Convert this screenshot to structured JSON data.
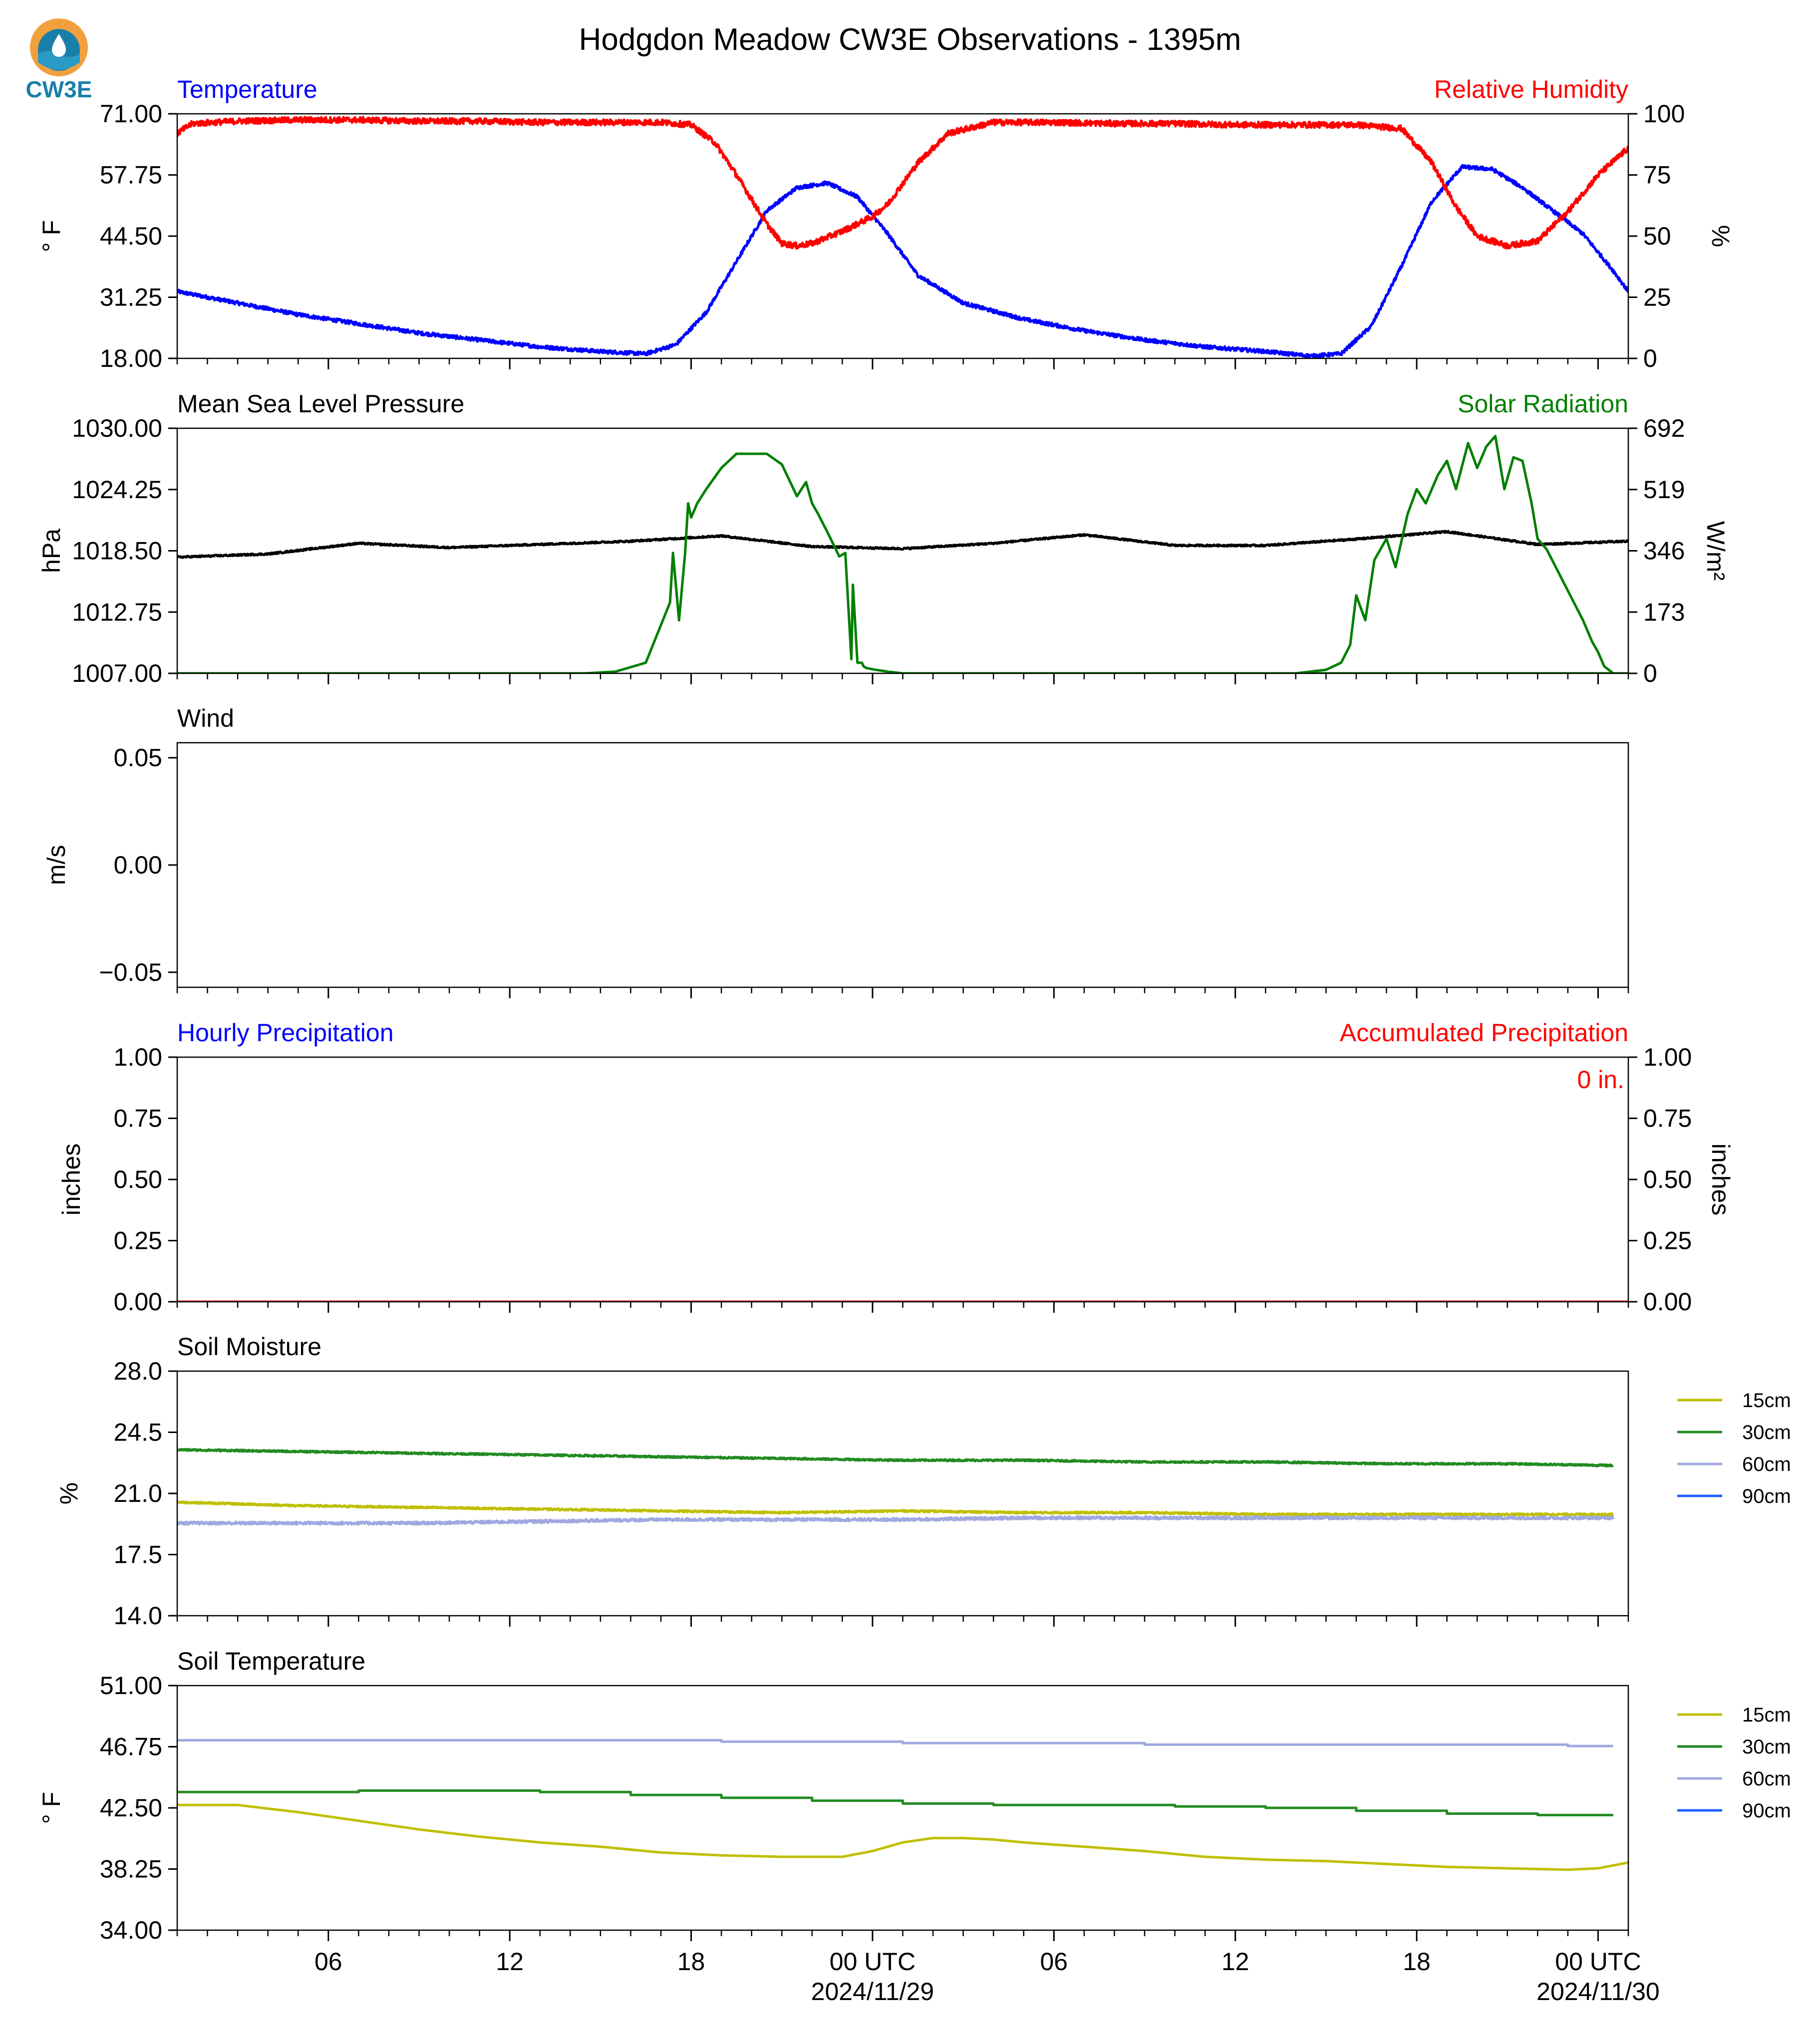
{
  "title": "Hodgdon Meadow CW3E Observations - 1395m",
  "logo": {
    "text": "CW3E",
    "icon": "cw3e-logo-icon",
    "colors": {
      "sun": "#f2a03d",
      "ring": "#1a7fa8",
      "wave": "#2a9bc4"
    }
  },
  "colors": {
    "temperature": "#0000ff",
    "rh": "#ff0000",
    "pressure": "#000000",
    "solar": "#007f00",
    "soil_15": "#bfbf00",
    "soil_30": "#228b22",
    "soil_60": "#9fa8e0",
    "soil_90": "#1f5fff"
  },
  "x_axis": {
    "unit": "hours",
    "range": [
      0,
      48
    ],
    "ticks": [
      {
        "v": 5,
        "label": "06"
      },
      {
        "v": 11,
        "label": "12"
      },
      {
        "v": 17,
        "label": "18"
      },
      {
        "v": 23,
        "label": "00 UTC",
        "sub": "2024/11/29"
      },
      {
        "v": 29,
        "label": "06"
      },
      {
        "v": 35,
        "label": "12"
      },
      {
        "v": 41,
        "label": "18"
      },
      {
        "v": 47,
        "label": "00 UTC",
        "sub": "2024/11/30"
      }
    ],
    "minor": [
      0,
      1,
      2,
      3,
      4,
      6,
      7,
      8,
      9,
      10,
      12,
      13,
      14,
      15,
      16,
      18,
      19,
      20,
      21,
      22,
      24,
      25,
      26,
      27,
      28,
      30,
      31,
      32,
      33,
      34,
      36,
      37,
      38,
      39,
      40,
      42,
      43,
      44,
      45,
      46,
      48
    ]
  },
  "chart_data": [
    {
      "id": "temp_rh",
      "type": "line",
      "title_left": "Temperature",
      "title_right": "Relative Humidity",
      "ylabel_left": "° F",
      "ylabel_right": "%",
      "ylim_left": [
        18.0,
        71.0
      ],
      "yticks_left": [
        "18.00",
        "31.25",
        "44.50",
        "57.75",
        "71.00"
      ],
      "ylim_right": [
        0,
        100
      ],
      "yticks_right": [
        "0",
        "25",
        "50",
        "75",
        "100"
      ],
      "series": [
        {
          "axis": "left",
          "color": "temperature",
          "noise": 0.4,
          "x": [
            0,
            2,
            4,
            6,
            8,
            10,
            12,
            14,
            15.5,
            16.5,
            17.5,
            18.5,
            19.5,
            20.5,
            21.5,
            22.5,
            23.5,
            24.5,
            26,
            28,
            30,
            32,
            34,
            36,
            37.5,
            38.5,
            39.5,
            40.5,
            41.5,
            42.5,
            43.5,
            44.5,
            45.5,
            46.5,
            47.5,
            48
          ],
          "y": [
            32.5,
            30.0,
            27.5,
            25.5,
            23.5,
            22.0,
            20.5,
            19.5,
            19.0,
            21.0,
            28.0,
            39.0,
            50.0,
            55.0,
            56.0,
            53.0,
            45.0,
            36.0,
            30.0,
            26.5,
            24.0,
            22.0,
            20.5,
            19.5,
            18.5,
            19.0,
            25.0,
            38.0,
            52.0,
            59.5,
            59.0,
            55.0,
            50.0,
            45.0,
            37.0,
            32.5
          ]
        },
        {
          "axis": "right",
          "color": "rh",
          "noise": 1.2,
          "x": [
            0,
            0.5,
            2,
            4,
            6,
            8,
            10,
            12,
            14,
            16,
            17,
            17.8,
            18.5,
            19.5,
            20,
            20.5,
            21,
            22,
            23,
            23.5,
            24.5,
            25.5,
            27,
            29,
            31,
            33,
            35,
            37,
            39,
            40.5,
            41.5,
            42.3,
            43,
            44,
            45,
            46,
            47,
            48
          ],
          "y": [
            92,
            96,
            97,
            97.5,
            97.5,
            97,
            97,
            96.5,
            96.5,
            96.5,
            95.5,
            88,
            75,
            55,
            47,
            46,
            47,
            52,
            58,
            63,
            80,
            92,
            96.5,
            96.5,
            96,
            96,
            95.5,
            95.5,
            95.5,
            94,
            80,
            62,
            50,
            46,
            48,
            60,
            75,
            86
          ]
        }
      ]
    },
    {
      "id": "pressure_solar",
      "type": "line",
      "title_left": "Mean Sea Level Pressure",
      "title_right": "Solar Radiation",
      "ylabel_left": "hPa",
      "ylabel_right": "W/m²",
      "ylim_left": [
        1007.0,
        1030.0
      ],
      "yticks_left": [
        "1007.00",
        "1012.75",
        "1018.50",
        "1024.25",
        "1030.00"
      ],
      "ylim_right": [
        0,
        692
      ],
      "yticks_right": [
        "0",
        "173",
        "346",
        "519",
        "692"
      ],
      "series": [
        {
          "axis": "left",
          "color": "pressure",
          "noise": 0.08,
          "x": [
            0,
            3,
            6,
            9,
            12,
            15,
            18,
            21,
            24,
            27,
            30,
            33,
            36,
            39,
            42,
            45,
            48
          ],
          "y": [
            1017.9,
            1018.2,
            1019.2,
            1018.8,
            1019.1,
            1019.4,
            1019.9,
            1018.9,
            1018.7,
            1019.2,
            1020.0,
            1019.0,
            1019.0,
            1019.6,
            1020.3,
            1019.1,
            1019.4
          ]
        },
        {
          "axis": "right",
          "color": "solar",
          "noise": 0,
          "x": [
            0,
            13.5,
            14.5,
            15.5,
            16.3,
            16.4,
            16.6,
            16.8,
            16.9,
            17.0,
            17.2,
            17.5,
            18,
            18.5,
            19.5,
            20,
            20.5,
            20.8,
            21,
            21.2,
            21.5,
            21.9,
            22.1,
            22.3,
            22.35,
            22.5,
            22.65,
            22.7,
            22.8,
            23.1,
            23.5,
            24,
            24.5,
            40,
            41,
            41.5,
            48
          ],
          "y": [
            0,
            0,
            5,
            30,
            200,
            340,
            150,
            340,
            480,
            440,
            480,
            520,
            580,
            620,
            620,
            590,
            500,
            540,
            480,
            450,
            400,
            330,
            340,
            40,
            250,
            30,
            30,
            20,
            15,
            10,
            5,
            0,
            0,
            0,
            0,
            0,
            0
          ]
        },
        {
          "axis": "right",
          "color": "solar",
          "noise": 0,
          "x": [
            37,
            38,
            38.5,
            38.8,
            39,
            39.3,
            39.6,
            40,
            40.3,
            40.7,
            41,
            41.3,
            41.7,
            42,
            42.3,
            42.7,
            43,
            43.3,
            43.6,
            43.9,
            44.2,
            44.5,
            44.8,
            45,
            45.3,
            45.6,
            45.9,
            46.2,
            46.5,
            46.8,
            47,
            47.2,
            47.5
          ],
          "y": [
            0,
            10,
            30,
            80,
            220,
            150,
            320,
            380,
            300,
            450,
            520,
            480,
            560,
            600,
            520,
            650,
            580,
            640,
            670,
            520,
            610,
            600,
            480,
            380,
            350,
            300,
            250,
            200,
            150,
            90,
            60,
            20,
            0
          ]
        }
      ]
    },
    {
      "id": "wind",
      "type": "line",
      "title_left": "Wind",
      "ylabel_left": "m/s",
      "ylim_left": [
        -0.057,
        0.057
      ],
      "yticks_left": [
        "−0.05",
        "0.00",
        "0.05"
      ],
      "ytick_values": [
        -0.05,
        0.0,
        0.05
      ],
      "series": []
    },
    {
      "id": "precip",
      "type": "line",
      "title_left": "Hourly Precipitation",
      "title_right": "Accumulated Precipitation",
      "ylabel_left": "inches",
      "ylabel_right": "inches",
      "ylim_left": [
        0,
        1
      ],
      "yticks_left": [
        "0.00",
        "0.25",
        "0.50",
        "0.75",
        "1.00"
      ],
      "ylim_right": [
        0,
        1
      ],
      "yticks_right": [
        "0.00",
        "0.25",
        "0.50",
        "0.75",
        "1.00"
      ],
      "annotation": "0 in.",
      "series": [
        {
          "axis": "left",
          "color": "rh",
          "noise": 0,
          "x": [
            0,
            48
          ],
          "y": [
            0,
            0
          ]
        }
      ]
    },
    {
      "id": "soil_moisture",
      "type": "line",
      "title_left": "Soil Moisture",
      "ylabel_left": "%",
      "ylim_left": [
        14.0,
        28.0
      ],
      "yticks_left": [
        "14.0",
        "17.5",
        "21.0",
        "24.5",
        "28.0"
      ],
      "legend": [
        "15cm",
        "30cm",
        "60cm",
        "90cm"
      ],
      "legend_colors": [
        "soil_15",
        "soil_30",
        "soil_60",
        "soil_90"
      ],
      "series": [
        {
          "axis": "left",
          "color": "soil_30",
          "noise": 0.05,
          "step": true,
          "x": [
            0,
            4,
            8,
            12,
            16,
            20,
            24,
            28,
            32,
            36,
            40,
            44,
            47.5
          ],
          "y": [
            23.5,
            23.4,
            23.3,
            23.2,
            23.1,
            23.0,
            22.9,
            22.9,
            22.8,
            22.8,
            22.7,
            22.7,
            22.6
          ]
        },
        {
          "axis": "left",
          "color": "soil_15",
          "noise": 0.05,
          "step": true,
          "x": [
            0,
            4,
            8,
            12,
            16,
            20,
            24,
            28,
            32,
            36,
            40,
            44,
            47.5
          ],
          "y": [
            20.5,
            20.3,
            20.2,
            20.1,
            20.0,
            19.9,
            20.0,
            19.9,
            19.9,
            19.8,
            19.8,
            19.8,
            19.8
          ]
        },
        {
          "axis": "left",
          "color": "soil_60",
          "noise": 0.08,
          "step": true,
          "x": [
            0,
            4,
            8,
            12,
            16,
            20,
            24,
            28,
            32,
            36,
            40,
            44,
            47.5
          ],
          "y": [
            19.3,
            19.3,
            19.3,
            19.4,
            19.5,
            19.5,
            19.5,
            19.6,
            19.6,
            19.6,
            19.6,
            19.6,
            19.6
          ]
        }
      ]
    },
    {
      "id": "soil_temperature",
      "type": "line",
      "title_left": "Soil Temperature",
      "ylabel_left": "° F",
      "ylim_left": [
        34.0,
        51.0
      ],
      "yticks_left": [
        "34.00",
        "38.25",
        "42.50",
        "46.75",
        "51.00"
      ],
      "legend": [
        "15cm",
        "30cm",
        "60cm",
        "90cm"
      ],
      "legend_colors": [
        "soil_15",
        "soil_30",
        "soil_60",
        "soil_90"
      ],
      "series": [
        {
          "axis": "left",
          "color": "soil_60",
          "noise": 0.0,
          "step": true,
          "x": [
            0,
            6,
            12,
            18,
            24,
            30,
            32,
            36,
            42,
            46,
            47.5
          ],
          "y": [
            47.2,
            47.2,
            47.2,
            47.1,
            47.0,
            47.0,
            46.9,
            46.9,
            46.9,
            46.8,
            46.8
          ]
        },
        {
          "axis": "left",
          "color": "soil_30",
          "noise": 0.0,
          "step": true,
          "x": [
            0,
            3,
            6,
            9,
            12,
            15,
            18,
            21,
            24,
            27,
            30,
            33,
            36,
            39,
            42,
            45,
            47.5
          ],
          "y": [
            43.6,
            43.6,
            43.7,
            43.7,
            43.6,
            43.4,
            43.2,
            43.0,
            42.8,
            42.7,
            42.7,
            42.6,
            42.5,
            42.3,
            42.1,
            42.0,
            42.0
          ]
        },
        {
          "axis": "left",
          "color": "soil_15",
          "noise": 0.0,
          "step": false,
          "x": [
            0,
            2,
            4,
            6,
            8,
            10,
            12,
            14,
            16,
            18,
            20,
            22,
            23,
            24,
            25,
            26,
            27,
            28,
            30,
            32,
            34,
            36,
            38,
            40,
            42,
            44,
            46,
            47,
            47.5,
            48
          ],
          "y": [
            42.7,
            42.7,
            42.2,
            41.6,
            41.0,
            40.5,
            40.1,
            39.8,
            39.4,
            39.2,
            39.1,
            39.1,
            39.5,
            40.1,
            40.4,
            40.4,
            40.3,
            40.1,
            39.8,
            39.5,
            39.1,
            38.9,
            38.8,
            38.6,
            38.4,
            38.3,
            38.2,
            38.3,
            38.5,
            38.7
          ]
        }
      ]
    }
  ]
}
